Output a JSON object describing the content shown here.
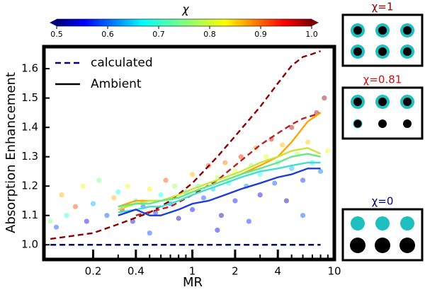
{
  "chart_data": {
    "type": "scatter",
    "xlabel": "MR",
    "ylabel": "Absorption Enhancement",
    "xscale": "log",
    "xlim": [
      0.09,
      10
    ],
    "ylim": [
      0.95,
      1.675
    ],
    "xticks": [
      0.2,
      0.4,
      1,
      2,
      4,
      10
    ],
    "xminorticks": [
      0.3,
      0.5,
      0.6,
      0.7,
      0.8,
      0.9,
      3,
      5,
      6,
      7,
      8,
      9
    ],
    "yticks": [
      {
        "value": 1,
        "label": "1.0"
      },
      1.1,
      1.2,
      1.3,
      1.4,
      1.5,
      1.6
    ],
    "colorbar": {
      "label": "χ",
      "colormap": "jet",
      "lim": [
        0.5,
        1.0
      ],
      "ticks": [
        0.5,
        0.6,
        0.7,
        0.8,
        0.9,
        {
          "value": 1,
          "label": "1.0"
        }
      ]
    },
    "legend": [
      {
        "label": "calculated",
        "style": "dashed",
        "color": "#000080"
      },
      {
        "label": "Ambient",
        "style": "solid",
        "color": "#000000"
      }
    ],
    "points": {
      "x": [
        0.1,
        0.11,
        0.12,
        0.13,
        0.15,
        0.17,
        0.18,
        0.2,
        0.22,
        0.25,
        0.28,
        0.3,
        0.32,
        0.35,
        0.38,
        0.4,
        0.45,
        0.5,
        0.55,
        0.6,
        0.65,
        0.7,
        0.75,
        0.8,
        0.9,
        1.0,
        1.0,
        1.1,
        1.2,
        1.3,
        1.4,
        1.5,
        1.6,
        1.7,
        1.8,
        2.0,
        2.0,
        2.2,
        2.4,
        2.6,
        2.8,
        3.0,
        3.0,
        3.3,
        3.6,
        3.8,
        4.0,
        4.3,
        4.6,
        5.0,
        5.0,
        5.5,
        6.0,
        6.5,
        7.0,
        7.5,
        8.0,
        8.5,
        9.0,
        0.5,
        1.5,
        2.5,
        6.0
      ],
      "values": [
        1.08,
        1.06,
        1.17,
        1.1,
        1.13,
        1.2,
        1.08,
        1.14,
        1.22,
        1.1,
        1.16,
        1.18,
        1.12,
        1.2,
        1.08,
        1.15,
        1.13,
        1.19,
        1.11,
        1.17,
        1.22,
        1.14,
        1.2,
        1.09,
        1.18,
        1.24,
        1.12,
        1.2,
        1.16,
        1.27,
        1.19,
        1.23,
        1.1,
        1.28,
        1.21,
        1.25,
        1.15,
        1.3,
        1.2,
        1.27,
        1.33,
        1.17,
        1.24,
        1.3,
        1.36,
        1.21,
        1.28,
        1.34,
        1.15,
        1.26,
        1.4,
        1.31,
        1.22,
        1.35,
        1.28,
        1.45,
        1.25,
        1.5,
        1.32,
        1.04,
        1.05,
        1.08,
        1.1
      ],
      "chi": [
        0.75,
        0.6,
        0.85,
        0.7,
        0.9,
        0.8,
        0.55,
        0.65,
        0.75,
        0.6,
        0.85,
        0.7,
        0.95,
        0.8,
        0.55,
        0.72,
        0.6,
        0.82,
        0.58,
        0.7,
        0.9,
        0.62,
        0.76,
        0.52,
        0.68,
        0.85,
        0.56,
        0.74,
        0.6,
        0.9,
        0.66,
        0.78,
        0.53,
        0.88,
        0.7,
        0.8,
        0.57,
        0.92,
        0.63,
        0.75,
        0.86,
        0.55,
        0.7,
        0.8,
        0.95,
        0.6,
        0.72,
        0.85,
        0.52,
        0.65,
        0.97,
        0.78,
        0.58,
        0.84,
        0.68,
        0.98,
        0.62,
        0.99,
        0.8,
        0.6,
        0.55,
        0.58,
        0.6
      ]
    },
    "lines": [
      {
        "style": "dashed",
        "color": "#000080",
        "x": [
          0.1,
          8
        ],
        "values": [
          1,
          1
        ]
      },
      {
        "style": "dashed",
        "color": "#8b0000",
        "x": [
          0.1,
          0.2,
          0.3,
          0.5,
          0.7,
          1,
          1.5,
          2,
          3,
          4,
          5,
          6,
          7,
          8
        ],
        "values": [
          1.02,
          1.04,
          1.07,
          1.11,
          1.15,
          1.21,
          1.3,
          1.37,
          1.47,
          1.55,
          1.61,
          1.64,
          1.65,
          1.66
        ]
      },
      {
        "style": "dashed",
        "color": "#b22222",
        "x": [
          0.4,
          0.7,
          1,
          1.5,
          2,
          3,
          4,
          5,
          6,
          7,
          8
        ],
        "values": [
          1.1,
          1.13,
          1.17,
          1.22,
          1.27,
          1.34,
          1.38,
          1.41,
          1.43,
          1.44,
          1.45
        ]
      },
      {
        "style": "solid",
        "color": "#ffa500",
        "x": [
          0.3,
          0.4,
          0.5,
          0.6,
          0.8,
          1,
          1.3,
          1.7,
          2.2,
          3,
          4,
          5,
          6.5,
          8
        ],
        "values": [
          1.13,
          1.15,
          1.15,
          1.15,
          1.16,
          1.18,
          1.2,
          1.22,
          1.24,
          1.27,
          1.3,
          1.35,
          1.42,
          1.45
        ]
      },
      {
        "style": "solid",
        "color": "#c8e632",
        "x": [
          0.3,
          0.4,
          0.5,
          0.6,
          0.8,
          1,
          1.3,
          1.7,
          2.2,
          3,
          4,
          5,
          6.5,
          8
        ],
        "values": [
          1.12,
          1.14,
          1.15,
          1.15,
          1.17,
          1.19,
          1.21,
          1.23,
          1.25,
          1.28,
          1.3,
          1.32,
          1.33,
          1.31
        ]
      },
      {
        "style": "solid",
        "color": "#66e88a",
        "x": [
          0.3,
          0.4,
          0.5,
          0.6,
          0.8,
          1,
          1.3,
          1.7,
          2.2,
          3,
          4,
          5,
          6.5,
          8
        ],
        "values": [
          1.13,
          1.14,
          1.14,
          1.15,
          1.16,
          1.18,
          1.2,
          1.22,
          1.24,
          1.26,
          1.28,
          1.3,
          1.31,
          1.3
        ]
      },
      {
        "style": "solid",
        "color": "#40e0d0",
        "x": [
          0.3,
          0.4,
          0.5,
          0.6,
          0.8,
          1,
          1.3,
          1.7,
          2.2,
          3,
          4,
          5,
          6.5,
          8
        ],
        "values": [
          1.11,
          1.12,
          1.13,
          1.13,
          1.15,
          1.17,
          1.19,
          1.21,
          1.23,
          1.25,
          1.26,
          1.27,
          1.28,
          1.28
        ]
      },
      {
        "style": "solid",
        "color": "#1e3cdc",
        "x": [
          0.3,
          0.4,
          0.5,
          0.6,
          0.8,
          1,
          1.3,
          1.7,
          2.2,
          3,
          4,
          5,
          6.5,
          8
        ],
        "values": [
          1.1,
          1.12,
          1.1,
          1.1,
          1.12,
          1.14,
          1.15,
          1.17,
          1.19,
          1.21,
          1.23,
          1.24,
          1.26,
          1.26
        ]
      }
    ]
  },
  "panels": [
    {
      "label": "χ=1"
    },
    {
      "label": "χ=0.81"
    },
    {
      "label": "χ=0"
    }
  ]
}
